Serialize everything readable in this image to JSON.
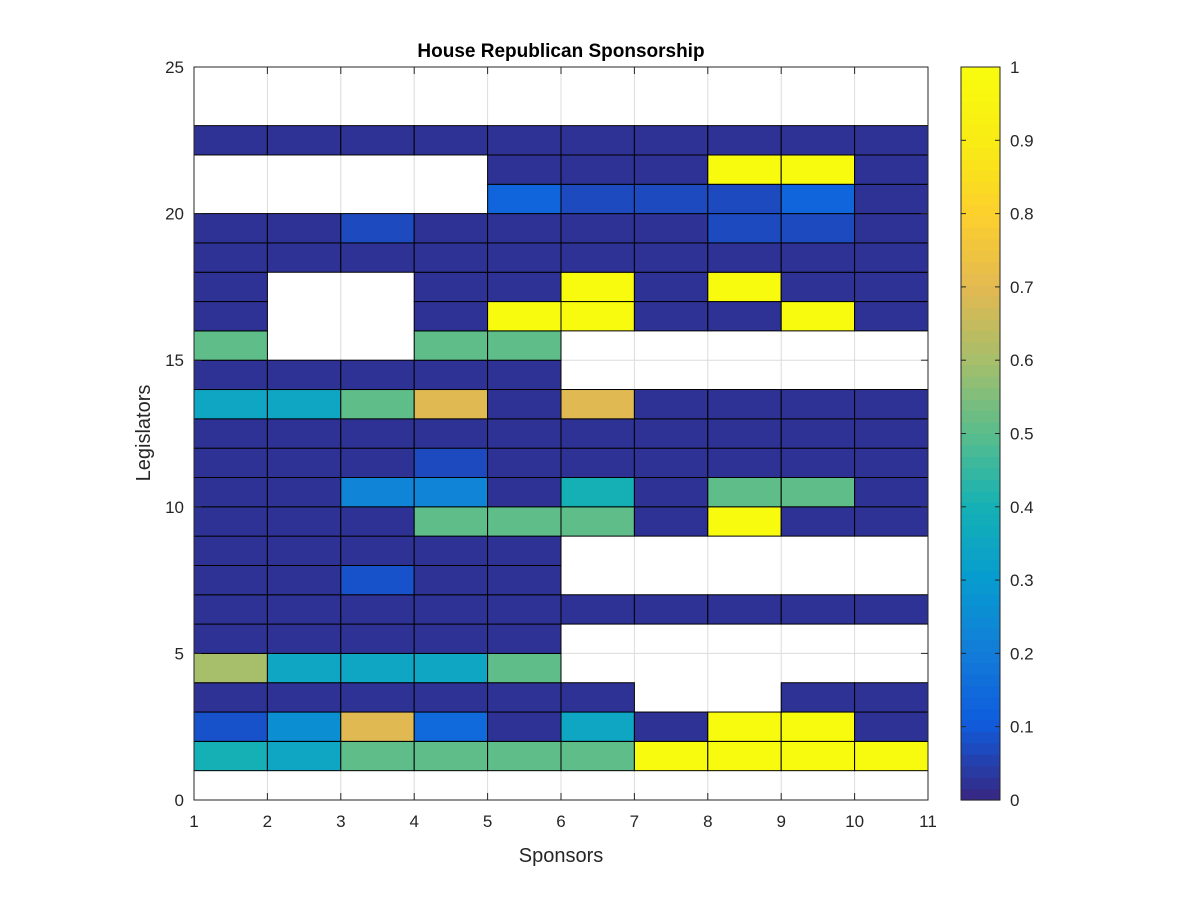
{
  "chart_data": {
    "type": "heatmap",
    "title": "House Republican Sponsorship",
    "xlabel": "Sponsors",
    "ylabel": "Legislators",
    "xlim": [
      1,
      11
    ],
    "ylim": [
      0,
      25
    ],
    "xticks": [
      "1",
      "2",
      "3",
      "4",
      "5",
      "6",
      "7",
      "8",
      "9",
      "10",
      "11"
    ],
    "yticks": [
      "0",
      "5",
      "10",
      "15",
      "20",
      "25"
    ],
    "grid": true,
    "colormap": "parula",
    "colorbar": {
      "min": 0,
      "max": 1,
      "ticks": [
        "0",
        "0.1",
        "0.2",
        "0.3",
        "0.4",
        "0.5",
        "0.6",
        "0.7",
        "0.8",
        "0.9",
        "1"
      ]
    },
    "rows": [
      {
        "y": 1,
        "values": [
          0.4,
          0.35,
          0.5,
          0.5,
          0.5,
          0.5,
          1,
          1,
          1,
          1
        ]
      },
      {
        "y": 2,
        "values": [
          0.08,
          0.25,
          0.7,
          0.15,
          0.02,
          0.35,
          0.02,
          1,
          1,
          0.02
        ]
      },
      {
        "y": 3,
        "values": [
          0.02,
          0.02,
          0.02,
          0.02,
          0.02,
          0.02,
          null,
          null,
          0.02,
          0.02
        ]
      },
      {
        "y": 4,
        "values": [
          0.6,
          0.35,
          0.35,
          0.35,
          0.5,
          null,
          null,
          null,
          null,
          null
        ]
      },
      {
        "y": 5,
        "values": [
          0.02,
          0.02,
          0.02,
          0.02,
          0.02,
          null,
          null,
          null,
          null,
          null
        ]
      },
      {
        "y": 6,
        "values": [
          0.02,
          0.02,
          0.02,
          0.02,
          0.02,
          0.02,
          0.02,
          0.02,
          0.02,
          0.02
        ]
      },
      {
        "y": 7,
        "values": [
          0.02,
          0.02,
          0.08,
          0.02,
          0.02,
          null,
          null,
          null,
          null,
          null
        ]
      },
      {
        "y": 8,
        "values": [
          0.02,
          0.02,
          0.02,
          0.02,
          0.02,
          null,
          null,
          null,
          null,
          null
        ]
      },
      {
        "y": 9,
        "values": [
          0.02,
          0.02,
          0.02,
          0.5,
          0.5,
          0.5,
          0.02,
          1,
          0.02,
          0.02
        ]
      },
      {
        "y": 10,
        "values": [
          0.02,
          0.02,
          0.22,
          0.22,
          0.02,
          0.4,
          0.02,
          0.5,
          0.5,
          0.02
        ]
      },
      {
        "y": 11,
        "values": [
          0.02,
          0.02,
          0.02,
          0.06,
          0.02,
          0.02,
          0.02,
          0.02,
          0.02,
          0.02
        ]
      },
      {
        "y": 12,
        "values": [
          0.02,
          0.02,
          0.02,
          0.02,
          0.02,
          0.02,
          0.02,
          0.02,
          0.02,
          0.02
        ]
      },
      {
        "y": 13,
        "values": [
          0.35,
          0.35,
          0.5,
          0.7,
          0.02,
          0.7,
          0.02,
          0.02,
          0.02,
          0.02
        ]
      },
      {
        "y": 14,
        "values": [
          0.02,
          0.02,
          0.02,
          0.02,
          0.02,
          null,
          null,
          null,
          null,
          null
        ]
      },
      {
        "y": 15,
        "values": [
          0.5,
          null,
          null,
          0.5,
          0.5,
          null,
          null,
          null,
          null,
          null
        ]
      },
      {
        "y": 16,
        "values": [
          0.02,
          null,
          null,
          0.02,
          1,
          1,
          0.02,
          0.02,
          1,
          0.02
        ]
      },
      {
        "y": 17,
        "values": [
          0.02,
          null,
          null,
          0.02,
          0.02,
          1,
          0.02,
          1,
          0.02,
          0.02
        ]
      },
      {
        "y": 18,
        "values": [
          0.02,
          0.02,
          0.02,
          0.02,
          0.02,
          0.02,
          0.02,
          0.02,
          0.02,
          0.02
        ]
      },
      {
        "y": 19,
        "values": [
          0.02,
          0.02,
          0.06,
          0.02,
          0.02,
          0.02,
          0.02,
          0.06,
          0.06,
          0.02
        ]
      },
      {
        "y": 20,
        "values": [
          null,
          null,
          null,
          null,
          0.12,
          0.06,
          0.06,
          0.06,
          0.12,
          0.02
        ]
      },
      {
        "y": 21,
        "values": [
          null,
          null,
          null,
          null,
          0.02,
          0.02,
          0.02,
          1,
          1,
          0.02
        ]
      },
      {
        "y": 22,
        "values": [
          0.02,
          0.02,
          0.02,
          0.02,
          0.02,
          0.02,
          0.02,
          0.02,
          0.02,
          0.02
        ]
      }
    ]
  }
}
